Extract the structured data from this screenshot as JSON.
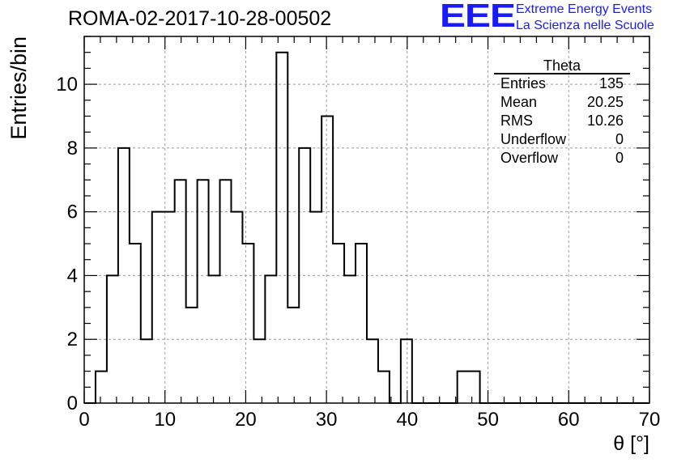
{
  "title": "ROMA-02-2017-10-28-00502",
  "logo": {
    "letters": "EEE",
    "line1": "Extreme Energy Events",
    "line2": "La Scienza nelle Scuole",
    "color": "#1a1aff"
  },
  "stats": {
    "name": "Theta",
    "rows": [
      {
        "label": "Entries",
        "value": "135"
      },
      {
        "label": "Mean",
        "value": "20.25"
      },
      {
        "label": "RMS",
        "value": "10.26"
      },
      {
        "label": "Underflow",
        "value": "0"
      },
      {
        "label": "Overflow",
        "value": "0"
      }
    ]
  },
  "chart_data": {
    "type": "bar",
    "title": "ROMA-02-2017-10-28-00502",
    "xlabel": "θ [°]",
    "ylabel": "Entries/bin",
    "xlim": [
      0,
      70
    ],
    "ylim": [
      0,
      11.5
    ],
    "bin_width": 1.4,
    "bin_edges_start": 0,
    "values": [
      0,
      1,
      4,
      8,
      5,
      2,
      6,
      6,
      7,
      3,
      7,
      4,
      7,
      6,
      5,
      2,
      4,
      11,
      3,
      8,
      6,
      9,
      5,
      4,
      5,
      2,
      1,
      0,
      2,
      0,
      0,
      0,
      0,
      1,
      1,
      0,
      0,
      0,
      0,
      0,
      0,
      0,
      0,
      0,
      0,
      0,
      0,
      0,
      0,
      0
    ],
    "xticks": [
      "0",
      "10",
      "20",
      "30",
      "40",
      "50",
      "60",
      "70"
    ],
    "yticks": [
      "0",
      "2",
      "4",
      "6",
      "8",
      "10"
    ],
    "grid": true,
    "line_color": "#000000"
  }
}
